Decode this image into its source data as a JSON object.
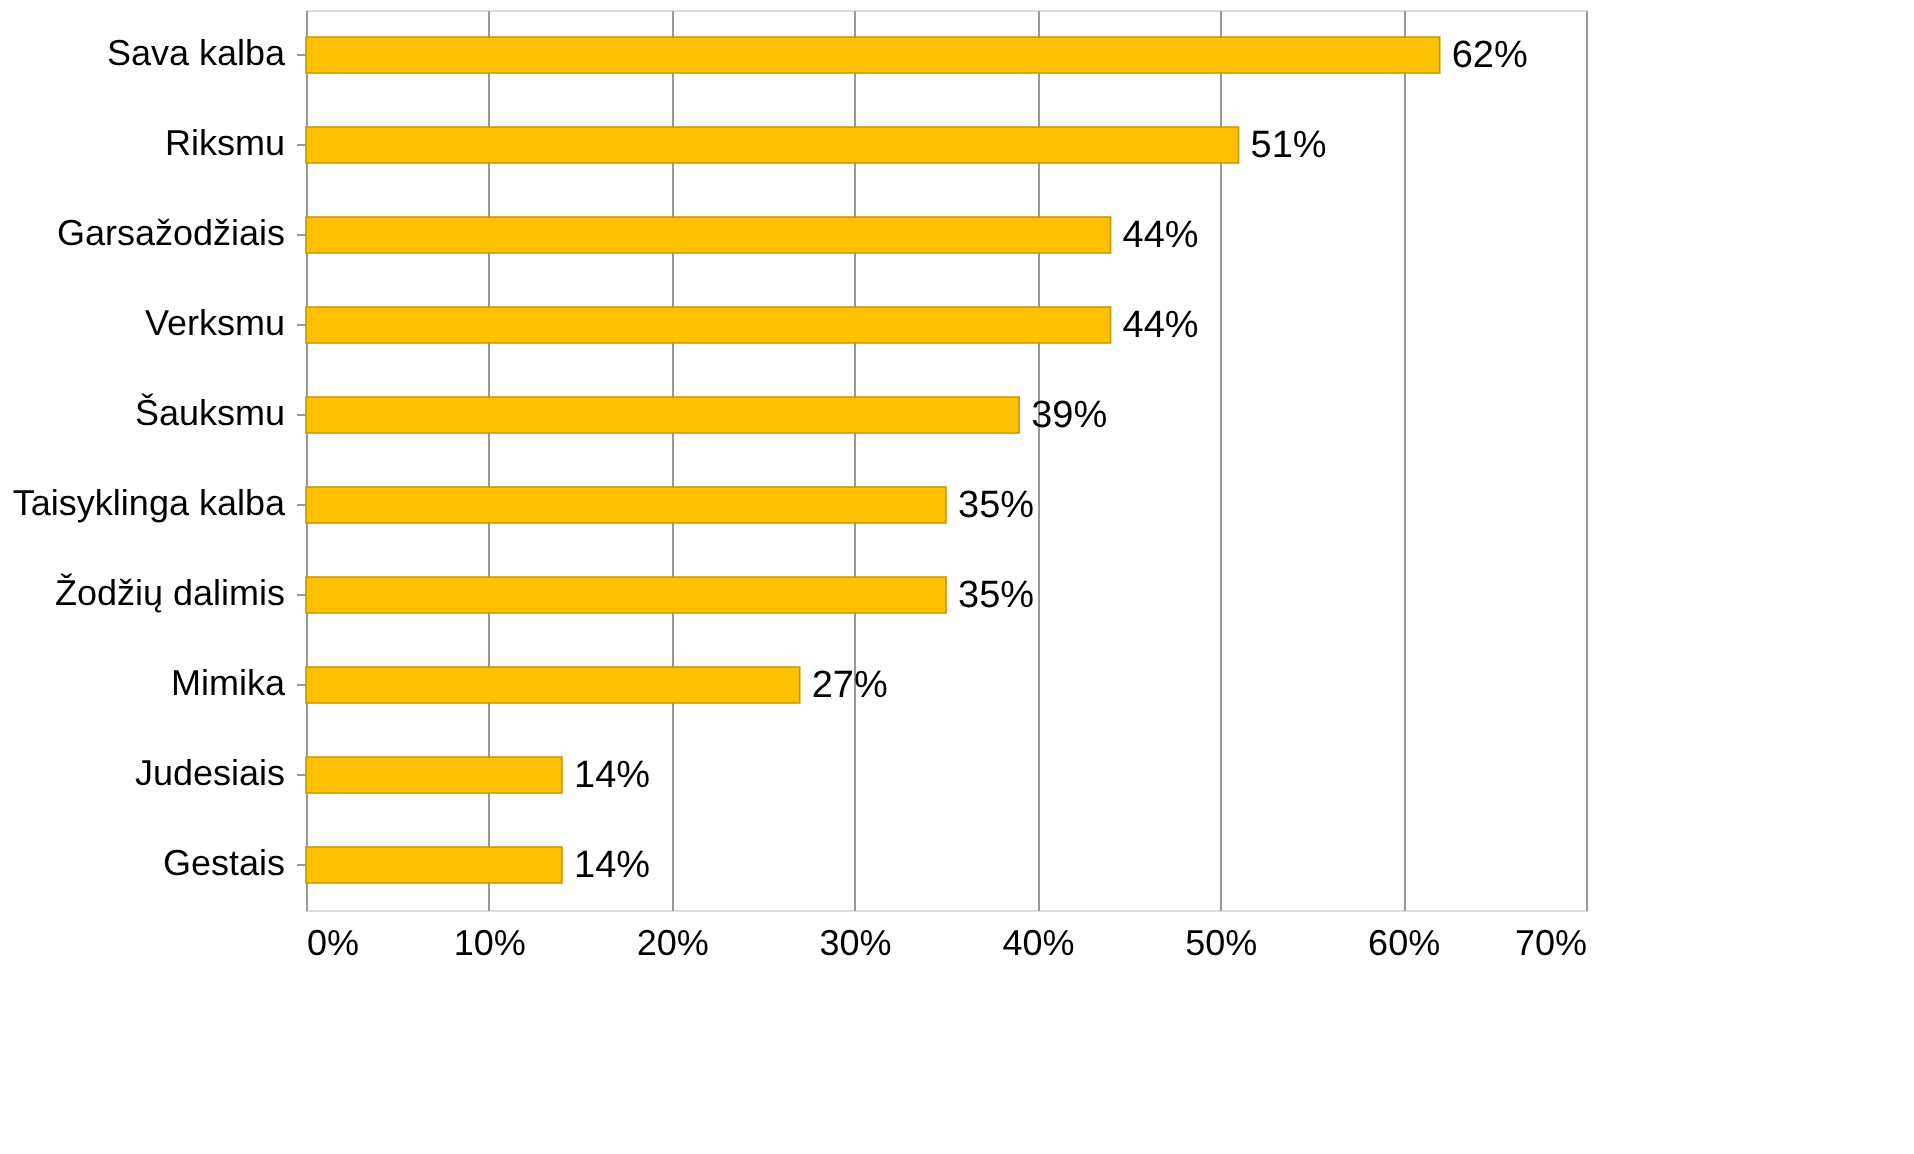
{
  "chart_data": {
    "type": "bar",
    "orientation": "horizontal",
    "categories": [
      "Sava kalba",
      "Riksmu",
      "Garsažodžiais",
      "Verksmu",
      "Šauksmu",
      "Taisyklinga kalba",
      "Žodžių dalimis",
      "Mimika",
      "Judesiais",
      "Gestais"
    ],
    "values": [
      62,
      51,
      44,
      44,
      39,
      35,
      35,
      27,
      14,
      14
    ],
    "value_labels": [
      "62%",
      "51%",
      "44%",
      "44%",
      "39%",
      "35%",
      "35%",
      "27%",
      "14%",
      "14%"
    ],
    "color": "#ffc000",
    "xlim": [
      0,
      70
    ],
    "xticks": [
      {
        "value": 0,
        "label": "0%"
      },
      {
        "value": 10,
        "label": "10%"
      },
      {
        "value": 20,
        "label": "20%"
      },
      {
        "value": 30,
        "label": "30%"
      },
      {
        "value": 40,
        "label": "40%"
      },
      {
        "value": 50,
        "label": "50%"
      },
      {
        "value": 60,
        "label": "60%"
      },
      {
        "value": 70,
        "label": "70%"
      }
    ],
    "grid": "x"
  }
}
